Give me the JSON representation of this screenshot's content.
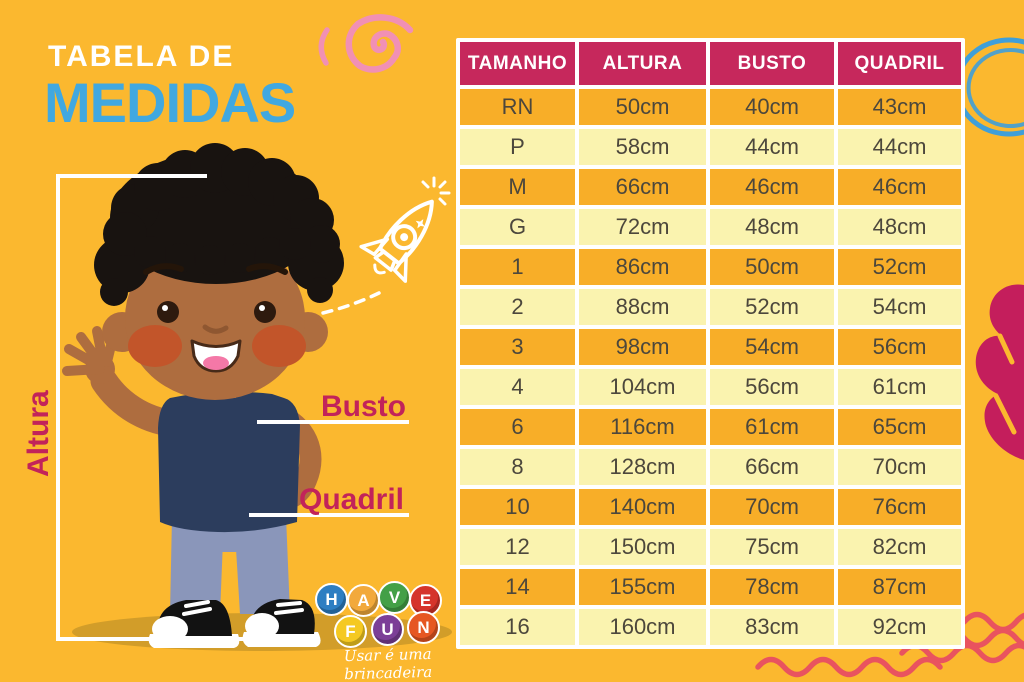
{
  "title": {
    "line1": "TABELA DE",
    "line2": "MEDIDAS"
  },
  "measure_labels": {
    "altura": "Altura",
    "busto": "Busto",
    "quadril": "Quadril"
  },
  "chart_data": {
    "type": "table",
    "title": "Tabela de Medidas",
    "columns": [
      "TAMANHO",
      "ALTURA",
      "BUSTO",
      "QUADRIL"
    ],
    "rows": [
      [
        "RN",
        "50cm",
        "40cm",
        "43cm"
      ],
      [
        "P",
        "58cm",
        "44cm",
        "44cm"
      ],
      [
        "M",
        "66cm",
        "46cm",
        "46cm"
      ],
      [
        "G",
        "72cm",
        "48cm",
        "48cm"
      ],
      [
        "1",
        "86cm",
        "50cm",
        "52cm"
      ],
      [
        "2",
        "88cm",
        "52cm",
        "54cm"
      ],
      [
        "3",
        "98cm",
        "54cm",
        "56cm"
      ],
      [
        "4",
        "104cm",
        "56cm",
        "61cm"
      ],
      [
        "6",
        "116cm",
        "61cm",
        "65cm"
      ],
      [
        "8",
        "128cm",
        "66cm",
        "70cm"
      ],
      [
        "10",
        "140cm",
        "70cm",
        "76cm"
      ],
      [
        "12",
        "150cm",
        "75cm",
        "82cm"
      ],
      [
        "14",
        "155cm",
        "78cm",
        "87cm"
      ],
      [
        "16",
        "160cm",
        "83cm",
        "92cm"
      ]
    ]
  },
  "logo": {
    "balls": [
      {
        "letter": "H",
        "color": "#2E7EC2"
      },
      {
        "letter": "A",
        "color": "#F2A93B"
      },
      {
        "letter": "V",
        "color": "#43A047"
      },
      {
        "letter": "E",
        "color": "#D5342B"
      },
      {
        "letter": "F",
        "color": "#F5C921"
      },
      {
        "letter": "U",
        "color": "#7C3F97"
      },
      {
        "letter": "N",
        "color": "#E65722"
      }
    ],
    "tagline": "Usar é uma brincadeira"
  },
  "colors": {
    "background": "#FBB82F",
    "row_orange": "#F8AE28",
    "row_light": "#FAF3AF",
    "header_bg": "#C6285C",
    "table_text": "#4C473C",
    "title_blue": "#41A8E0",
    "accent_crimson": "#C2235A",
    "wave_red": "#E9535F",
    "spiral_pink": "#F190B4",
    "circle_blue": "#3F9FD9",
    "heart_magenta": "#C41E5C"
  },
  "icons": {
    "rocket": "rocket-doodle",
    "spiral": "pink-spiral-doodle",
    "circle": "blue-circle-doodle",
    "heart": "magenta-heart-doodle",
    "waves": "red-waves-doodle"
  }
}
